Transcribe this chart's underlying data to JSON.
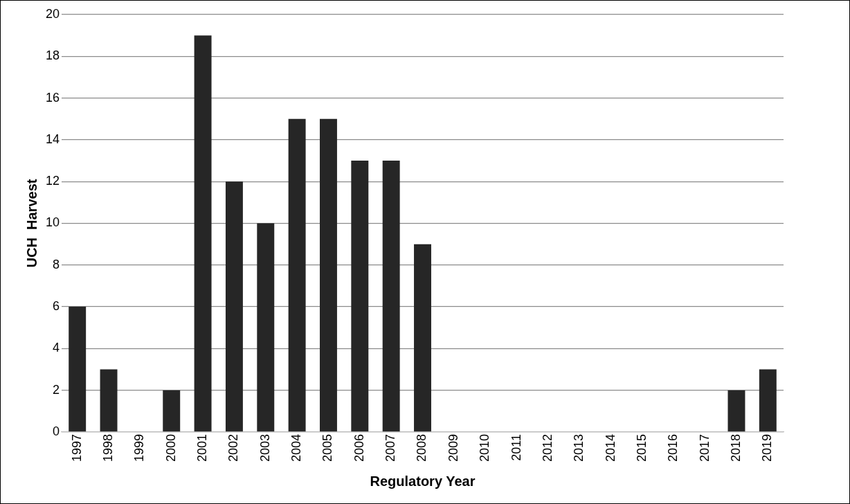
{
  "chart_data": {
    "type": "bar",
    "xlabel": "Regulatory Year",
    "ylabel": "UCH  Harvest",
    "categories": [
      "1997",
      "1998",
      "1999",
      "2000",
      "2001",
      "2002",
      "2003",
      "2004",
      "2005",
      "2006",
      "2007",
      "2008",
      "2009",
      "2010",
      "2011",
      "2012",
      "2013",
      "2014",
      "2015",
      "2016",
      "2017",
      "2018",
      "2019"
    ],
    "values": [
      6,
      3,
      0,
      2,
      19,
      12,
      10,
      15,
      15,
      13,
      13,
      9,
      0,
      0,
      0,
      0,
      0,
      0,
      0,
      0,
      0,
      2,
      3
    ],
    "color": "#262626",
    "ylim": [
      0,
      20
    ],
    "yticks": [
      0,
      2,
      4,
      6,
      8,
      10,
      12,
      14,
      16,
      18,
      20
    ],
    "grid": "y",
    "legend": false
  }
}
